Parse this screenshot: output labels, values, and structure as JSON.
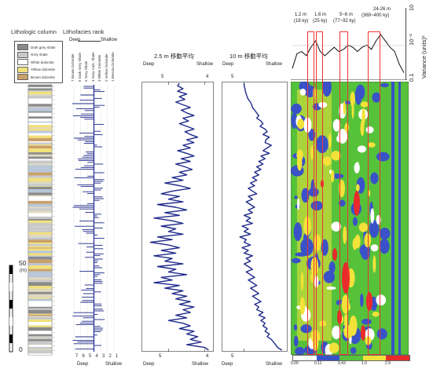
{
  "headers": {
    "lithologic_column": "Lithologic column",
    "lithofacies_rank": "Lithofacies rank"
  },
  "legend": [
    {
      "label": "Dark grey shale",
      "color": "#8a8a8a"
    },
    {
      "label": "Grey shale",
      "color": "#c9c9c9"
    },
    {
      "label": "White dolomite",
      "color": "#ffffff"
    },
    {
      "label": "Yellow dolomite",
      "color": "#f2e07a"
    },
    {
      "label": "Brown dolomite",
      "color": "#c9a06a"
    }
  ],
  "rank_header": {
    "deep": "Deep",
    "shallow": "Shallow",
    "facies": [
      "7 Brown Dolomite",
      "6 Dark Grey Shale",
      "5 Grey Shale",
      "4 Grey Calc. Shale",
      "3 White Dolomite",
      "2 Yellow Dolomite",
      "1 Breccia Dolomite"
    ]
  },
  "scale": {
    "top": "50",
    "unit": "(m)",
    "bottom": "0"
  },
  "rank_axis": {
    "ticks": [
      "7",
      "6",
      "5",
      "4",
      "3",
      "2",
      "1"
    ],
    "deep": "Deep",
    "shallow": "Shallow"
  },
  "ma25": {
    "title": "2.5 m 移動平均",
    "deep": "Deep",
    "shallow": "Shallow",
    "ticks_top": [
      "5",
      "4"
    ],
    "ticks_bottom": [
      "5",
      "4"
    ]
  },
  "ma10": {
    "title": "10 m 移動平均",
    "deep": "Deep",
    "shallow": "Shallow",
    "ticks_top": [
      "5"
    ],
    "ticks_bottom": [
      "5"
    ]
  },
  "spectrum": {
    "bands": [
      {
        "label": "1.2 m",
        "sub": "(18 ky)"
      },
      {
        "label": "1.6 m",
        "sub": "(25 ky)"
      },
      {
        "label": "5~6 m",
        "sub": "(77~92 ky)"
      },
      {
        "label": "24-26 m",
        "sub": "(369~400 ky)"
      }
    ],
    "yaxis_label": "Variance (units)²",
    "yticks": [
      "10",
      "10⁻²",
      "0.1"
    ],
    "colorbar": [
      "0.00",
      "0.11",
      "0.43",
      "1.0",
      "2.9"
    ],
    "colors": [
      "#ffffff",
      "#3a52c8",
      "#56c23a",
      "#f2e23a",
      "#e82a2a"
    ]
  },
  "chart_data": {
    "type": "line",
    "title": "",
    "series": [
      {
        "name": "2.5 m 移動平均",
        "x_range": [
          5.7,
          3.8
        ],
        "depth_range": [
          0,
          100
        ],
        "values": [
          4.7,
          4.75,
          4.6,
          4.75,
          4.5,
          4.7,
          4.55,
          4.8,
          4.6,
          4.4,
          4.65,
          4.5,
          4.3,
          4.6,
          4.45,
          4.7,
          4.5,
          4.3,
          4.55,
          4.4,
          4.2,
          4.5,
          4.3,
          4.6,
          4.4,
          4.75,
          4.5,
          4.3,
          4.65,
          4.4,
          4.8,
          4.55,
          4.35,
          4.7,
          4.5,
          4.9,
          4.6,
          5.1,
          4.7,
          4.4,
          4.9,
          5.2,
          4.7,
          5.0,
          4.6,
          5.3,
          4.8,
          4.5,
          5.1,
          4.7,
          5.4,
          4.9,
          4.6,
          5.2,
          4.8,
          5.0,
          4.6,
          5.3,
          4.9,
          5.5,
          5.0,
          4.7,
          5.2,
          4.8,
          5.4,
          4.9,
          5.1,
          4.6,
          5.3,
          4.8,
          5.0,
          4.5,
          5.2,
          4.9,
          5.4,
          4.7,
          5.1,
          4.6,
          4.9,
          4.5,
          4.8,
          4.4,
          4.7,
          4.3,
          4.6,
          4.4,
          4.8,
          4.5,
          5.0,
          4.6,
          4.4,
          4.7,
          4.3,
          4.5,
          4.2,
          4.4,
          4.1,
          4.5,
          4.0,
          3.9
        ]
      },
      {
        "name": "10 m 移動平均",
        "x_range": [
          5.5,
          4.0
        ],
        "depth_range": [
          0,
          100
        ],
        "values": [
          5.0,
          5.0,
          4.98,
          4.97,
          4.95,
          4.93,
          4.9,
          4.85,
          4.82,
          4.8,
          4.75,
          4.7,
          4.65,
          4.7,
          4.6,
          4.55,
          4.62,
          4.5,
          4.45,
          4.55,
          4.4,
          4.48,
          4.5,
          4.35,
          4.45,
          4.55,
          4.4,
          4.6,
          4.5,
          4.65,
          4.55,
          4.7,
          4.6,
          4.75,
          4.65,
          4.8,
          4.7,
          4.85,
          4.75,
          4.9,
          4.8,
          4.7,
          4.9,
          4.8,
          4.95,
          4.85,
          4.75,
          4.9,
          4.8,
          5.0,
          4.85,
          4.95,
          4.8,
          5.05,
          4.9,
          5.0,
          4.85,
          5.1,
          4.95,
          5.0,
          4.85,
          5.05,
          4.9,
          5.0,
          4.8,
          4.95,
          4.85,
          5.0,
          4.9,
          4.8,
          4.95,
          4.85,
          4.75,
          4.9,
          4.8,
          4.7,
          4.85,
          4.75,
          4.65,
          4.8,
          4.7,
          4.6,
          4.75,
          4.65,
          4.7,
          4.55,
          4.65,
          4.5,
          4.6,
          4.5,
          4.55,
          4.45,
          4.5,
          4.4,
          4.45,
          4.35,
          4.3,
          4.25,
          4.2,
          4.1
        ]
      },
      {
        "name": "Variance",
        "values": [
          0.2,
          0.55,
          0.6,
          0.5,
          0.7,
          0.85,
          0.6,
          0.5,
          0.6,
          0.7,
          0.6,
          0.65,
          0.75,
          0.7,
          0.6,
          0.7,
          0.75,
          0.65,
          0.85,
          1.0,
          0.85,
          0.7,
          0.6,
          0.3,
          0.1
        ]
      }
    ]
  }
}
